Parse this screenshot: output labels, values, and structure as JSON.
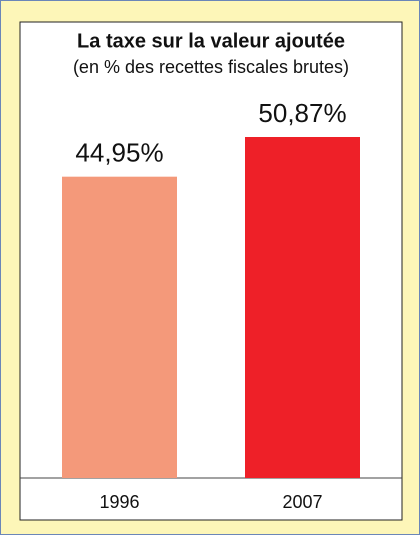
{
  "chart_data": {
    "type": "bar",
    "title": "La taxe sur la valeur ajoutée",
    "subtitle": "(en % des recettes fiscales brutes)",
    "categories": [
      "1996",
      "2007"
    ],
    "values": [
      44.95,
      50.87
    ],
    "value_labels": [
      "44,95%",
      "50,87%"
    ],
    "colors": [
      "#f4997a",
      "#ee2028"
    ]
  }
}
